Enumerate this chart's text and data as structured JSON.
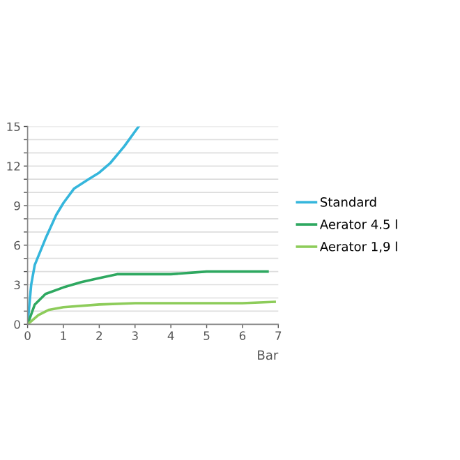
{
  "chart_data": {
    "type": "line",
    "xlabel": "Bar",
    "xlim": [
      0,
      7
    ],
    "xticks": [
      0,
      1,
      2,
      3,
      4,
      5,
      6,
      7
    ],
    "ylim": [
      0,
      15
    ],
    "yticks": [
      0,
      {
        "value": 1,
        "label": null
      },
      {
        "value": 2,
        "label": null
      },
      3,
      {
        "value": 4,
        "label": null
      },
      {
        "value": 5,
        "label": null
      },
      6,
      {
        "value": 7,
        "label": null
      },
      {
        "value": 8,
        "label": null
      },
      9,
      {
        "value": 10,
        "label": null
      },
      {
        "value": 11,
        "label": null
      },
      12,
      {
        "value": 13,
        "label": null
      },
      {
        "value": 14,
        "label": null
      },
      15
    ],
    "grid": "y",
    "legend": "right",
    "marker": "none",
    "line_style": "solid",
    "series": [
      {
        "name": "Standard",
        "color": "#35b6dc",
        "x": [
          0,
          0.1,
          0.2,
          0.5,
          0.8,
          1.0,
          1.3,
          1.7,
          2.0,
          2.3,
          2.7,
          3.1
        ],
        "values": [
          0,
          3,
          4.5,
          6.5,
          8.3,
          9.2,
          10.3,
          11.0,
          11.5,
          12.2,
          13.5,
          15
        ]
      },
      {
        "name": "Aerator 4.5 l",
        "color": "#2ea860",
        "x": [
          0,
          0.2,
          0.5,
          1,
          1.5,
          2,
          2.5,
          3,
          4,
          5,
          6,
          6.7
        ],
        "values": [
          0,
          1.5,
          2.3,
          2.8,
          3.2,
          3.5,
          3.8,
          3.8,
          3.8,
          4.0,
          4.0,
          4.0
        ]
      },
      {
        "name": "Aerator 1,9 l",
        "color": "#8dcc5a",
        "x": [
          0,
          0.3,
          0.6,
          1,
          2,
          3,
          4,
          5,
          6,
          6.9
        ],
        "values": [
          0,
          0.7,
          1.1,
          1.3,
          1.5,
          1.6,
          1.6,
          1.6,
          1.6,
          1.7
        ]
      }
    ]
  }
}
